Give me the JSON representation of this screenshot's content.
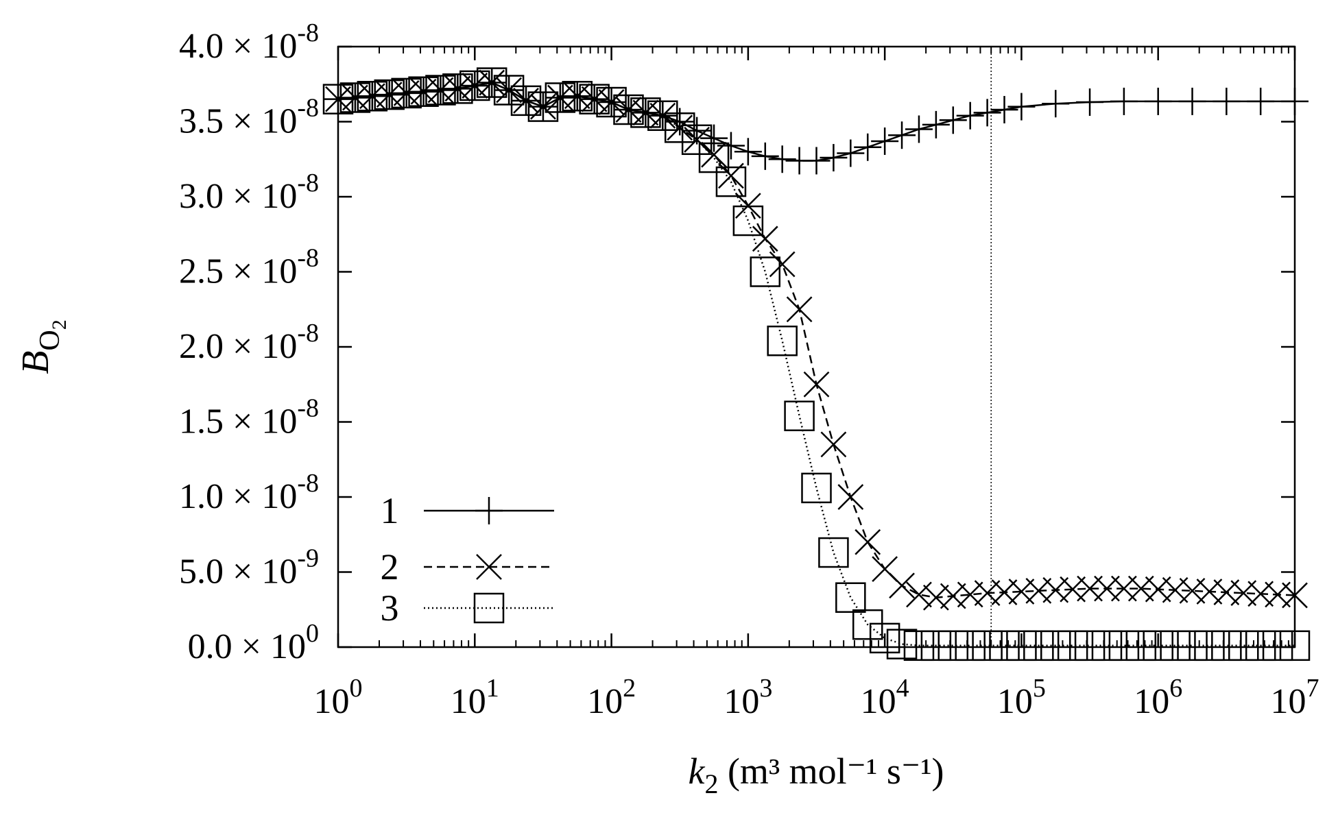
{
  "chart_data": {
    "type": "line",
    "xscale": "log",
    "xlim": [
      1,
      10000000
    ],
    "ylim": [
      0,
      4e-08
    ],
    "xlabel": {
      "symbol": "k",
      "subscript": "2",
      "units": "(m³ mol⁻¹ s⁻¹)"
    },
    "ylabel": {
      "symbol": "B",
      "subscript": "O",
      "subsubscript": "2"
    },
    "x_ticks": [
      {
        "value": 1,
        "base": "10",
        "exp": "0"
      },
      {
        "value": 10,
        "base": "10",
        "exp": "1"
      },
      {
        "value": 100,
        "base": "10",
        "exp": "2"
      },
      {
        "value": 1000,
        "base": "10",
        "exp": "3"
      },
      {
        "value": 10000,
        "base": "10",
        "exp": "4"
      },
      {
        "value": 100000,
        "base": "10",
        "exp": "5"
      },
      {
        "value": 1000000,
        "base": "10",
        "exp": "6"
      },
      {
        "value": 10000000,
        "base": "10",
        "exp": "7"
      }
    ],
    "y_ticks": [
      {
        "value": 0.0,
        "mant": "0.0",
        "exp": "0"
      },
      {
        "value": 5e-09,
        "mant": "5.0",
        "exp": "-9"
      },
      {
        "value": 1e-08,
        "mant": "1.0",
        "exp": "-8"
      },
      {
        "value": 1.5e-08,
        "mant": "1.5",
        "exp": "-8"
      },
      {
        "value": 2e-08,
        "mant": "2.0",
        "exp": "-8"
      },
      {
        "value": 2.5e-08,
        "mant": "2.5",
        "exp": "-8"
      },
      {
        "value": 3e-08,
        "mant": "3.0",
        "exp": "-8"
      },
      {
        "value": 3.5e-08,
        "mant": "3.5",
        "exp": "-8"
      },
      {
        "value": 4e-08,
        "mant": "4.0",
        "exp": "-8"
      }
    ],
    "times_sign": "×",
    "vertical_reference_line": {
      "x": 60000
    },
    "series": [
      {
        "name": "1",
        "marker": "plus",
        "dash": "solid",
        "log10_x": [
          0,
          0.125,
          0.25,
          0.375,
          0.5,
          0.625,
          0.75,
          0.875,
          1,
          1.125,
          1.25,
          1.375,
          1.5,
          1.625,
          1.75,
          1.875,
          2,
          2.125,
          2.25,
          2.375,
          2.5,
          2.625,
          2.75,
          2.875,
          3,
          3.125,
          3.25,
          3.375,
          3.5,
          3.625,
          3.75,
          3.875,
          4,
          4.125,
          4.25,
          4.375,
          4.5,
          4.625,
          4.75,
          4.875,
          5,
          5.25,
          5.5,
          5.75,
          6,
          6.25,
          6.5,
          6.75,
          7
        ],
        "y": [
          3.65e-08,
          3.66e-08,
          3.67e-08,
          3.68e-08,
          3.69e-08,
          3.7e-08,
          3.71e-08,
          3.72e-08,
          3.74e-08,
          3.76e-08,
          3.71e-08,
          3.64e-08,
          3.6e-08,
          3.66e-08,
          3.67e-08,
          3.65e-08,
          3.63e-08,
          3.58e-08,
          3.56e-08,
          3.54e-08,
          3.5e-08,
          3.44e-08,
          3.39e-08,
          3.34e-08,
          3.3e-08,
          3.27e-08,
          3.25e-08,
          3.24e-08,
          3.24e-08,
          3.26e-08,
          3.29e-08,
          3.33e-08,
          3.37e-08,
          3.41e-08,
          3.45e-08,
          3.48e-08,
          3.51e-08,
          3.54e-08,
          3.56e-08,
          3.58e-08,
          3.6e-08,
          3.62e-08,
          3.63e-08,
          3.635e-08,
          3.635e-08,
          3.635e-08,
          3.635e-08,
          3.635e-08,
          3.635e-08
        ]
      },
      {
        "name": "2",
        "marker": "cross",
        "dash": "dashed",
        "log10_x": [
          0,
          0.125,
          0.25,
          0.375,
          0.5,
          0.625,
          0.75,
          0.875,
          1,
          1.125,
          1.25,
          1.375,
          1.5,
          1.625,
          1.75,
          1.875,
          2,
          2.125,
          2.25,
          2.375,
          2.5,
          2.625,
          2.75,
          2.875,
          3,
          3.125,
          3.25,
          3.375,
          3.5,
          3.625,
          3.75,
          3.875,
          4,
          4.125,
          4.25,
          4.375,
          4.5,
          4.625,
          4.75,
          4.875,
          5,
          5.125,
          5.25,
          5.375,
          5.5,
          5.625,
          5.75,
          5.875,
          6,
          6.125,
          6.25,
          6.375,
          6.5,
          6.625,
          6.75,
          6.875,
          7
        ],
        "y": [
          3.65e-08,
          3.66e-08,
          3.67e-08,
          3.68e-08,
          3.69e-08,
          3.7e-08,
          3.71e-08,
          3.72e-08,
          3.74e-08,
          3.76e-08,
          3.71e-08,
          3.64e-08,
          3.6e-08,
          3.66e-08,
          3.67e-08,
          3.65e-08,
          3.63e-08,
          3.58e-08,
          3.56e-08,
          3.54e-08,
          3.46e-08,
          3.38e-08,
          3.28e-08,
          3.14e-08,
          2.94e-08,
          2.72e-08,
          2.55e-08,
          2.25e-08,
          1.75e-08,
          1.35e-08,
          1e-08,
          7e-09,
          5.2e-09,
          4.1e-09,
          3.5e-09,
          3.3e-09,
          3.4e-09,
          3.5e-09,
          3.6e-09,
          3.65e-09,
          3.7e-09,
          3.75e-09,
          3.8e-09,
          3.85e-09,
          3.9e-09,
          3.9e-09,
          3.9e-09,
          3.9e-09,
          3.85e-09,
          3.8e-09,
          3.75e-09,
          3.7e-09,
          3.65e-09,
          3.6e-09,
          3.55e-09,
          3.5e-09,
          3.45e-09
        ]
      },
      {
        "name": "3",
        "marker": "square",
        "dash": "dotted",
        "log10_x": [
          0,
          0.125,
          0.25,
          0.375,
          0.5,
          0.625,
          0.75,
          0.875,
          1,
          1.125,
          1.25,
          1.375,
          1.5,
          1.625,
          1.75,
          1.875,
          2,
          2.125,
          2.25,
          2.375,
          2.5,
          2.625,
          2.75,
          2.875,
          3,
          3.125,
          3.25,
          3.375,
          3.5,
          3.625,
          3.75,
          3.875,
          4,
          4.125,
          4.25,
          4.375,
          4.5,
          4.625,
          4.75,
          4.875,
          5,
          5.125,
          5.25,
          5.375,
          5.5,
          5.625,
          5.75,
          5.875,
          6,
          6.125,
          6.25,
          6.375,
          6.5,
          6.625,
          6.75,
          6.875,
          7
        ],
        "y": [
          3.65e-08,
          3.66e-08,
          3.67e-08,
          3.68e-08,
          3.69e-08,
          3.7e-08,
          3.71e-08,
          3.72e-08,
          3.74e-08,
          3.76e-08,
          3.71e-08,
          3.64e-08,
          3.6e-08,
          3.66e-08,
          3.67e-08,
          3.65e-08,
          3.63e-08,
          3.58e-08,
          3.56e-08,
          3.54e-08,
          3.46e-08,
          3.38e-08,
          3.26e-08,
          3.1e-08,
          2.84e-08,
          2.5e-08,
          2.04e-08,
          1.54e-08,
          1.06e-08,
          6.3e-09,
          3.3e-09,
          1.5e-09,
          6e-10,
          2e-10,
          1e-10,
          1e-10,
          1e-10,
          1e-10,
          1e-10,
          1e-10,
          1e-10,
          1e-10,
          1e-10,
          1e-10,
          1e-10,
          1e-10,
          1e-10,
          1e-10,
          1e-10,
          1e-10,
          1e-10,
          1e-10,
          1e-10,
          1e-10,
          1e-10,
          1e-10,
          1e-10
        ]
      }
    ],
    "legend": {
      "location": "lower-left",
      "entries": [
        "1",
        "2",
        "3"
      ]
    }
  }
}
